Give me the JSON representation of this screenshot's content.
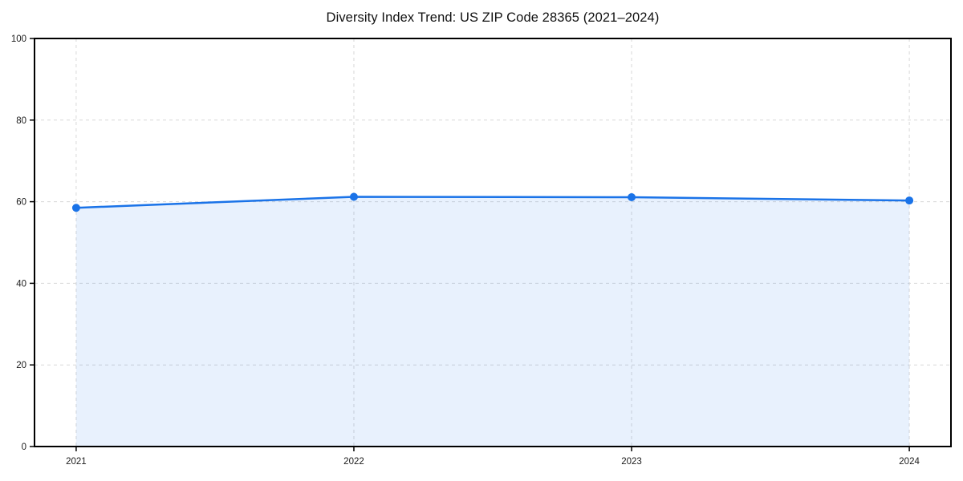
{
  "chart_data": {
    "type": "area",
    "title": "Diversity Index Trend: US ZIP Code 28365 (2021–2024)",
    "x": [
      2021,
      2022,
      2023,
      2024
    ],
    "series": [
      {
        "name": "Diversity Index",
        "values": [
          58.5,
          61.2,
          61.1,
          60.3
        ]
      }
    ],
    "xlabel": "",
    "ylabel": "",
    "xticks": [
      2021,
      2022,
      2023,
      2024
    ],
    "xtick_labels": [
      "2021",
      "2022",
      "2023",
      "2024"
    ],
    "yticks": [
      0,
      20,
      40,
      60,
      80,
      100
    ],
    "ytick_labels": [
      "0",
      "20",
      "40",
      "60",
      "80",
      "100"
    ],
    "xlim": [
      2020.85,
      2024.15
    ],
    "ylim": [
      0,
      100
    ],
    "grid": true,
    "grid_style": "dashed",
    "legend": "none",
    "markers": true,
    "colors": {
      "line": "#1a73e8",
      "marker": "#1a73e8",
      "fill_opacity": 0.1,
      "grid": "#d8d8d8",
      "spine": "#000000",
      "text": "#1a1a1a",
      "background": "#ffffff"
    }
  }
}
